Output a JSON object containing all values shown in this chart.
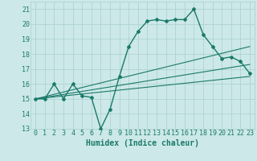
{
  "title": "",
  "xlabel": "Humidex (Indice chaleur)",
  "ylabel": "",
  "xlim": [
    -0.5,
    23.5
  ],
  "ylim": [
    13,
    21.5
  ],
  "yticks": [
    13,
    14,
    15,
    16,
    17,
    18,
    19,
    20,
    21
  ],
  "xticks": [
    0,
    1,
    2,
    3,
    4,
    5,
    6,
    7,
    8,
    9,
    10,
    11,
    12,
    13,
    14,
    15,
    16,
    17,
    18,
    19,
    20,
    21,
    22,
    23
  ],
  "bg_color": "#cce8e8",
  "grid_color": "#aacfcf",
  "line_color": "#1a7a6a",
  "lines": [
    {
      "x": [
        0,
        1,
        2,
        3,
        4,
        5,
        6,
        7,
        8,
        9,
        10,
        11,
        12,
        13,
        14,
        15,
        16,
        17,
        18,
        19,
        20,
        21,
        22,
        23
      ],
      "y": [
        15.0,
        15.0,
        16.0,
        15.0,
        16.0,
        15.2,
        15.1,
        13.0,
        14.3,
        16.5,
        18.5,
        19.5,
        20.2,
        20.3,
        20.2,
        20.3,
        20.3,
        21.0,
        19.3,
        18.5,
        17.7,
        17.8,
        17.5,
        16.7
      ],
      "marker": "D",
      "markersize": 2.0,
      "linewidth": 1.0
    },
    {
      "x": [
        0,
        23
      ],
      "y": [
        15.0,
        17.3
      ],
      "marker": null,
      "markersize": 0,
      "linewidth": 0.8
    },
    {
      "x": [
        0,
        23
      ],
      "y": [
        15.0,
        18.5
      ],
      "marker": null,
      "markersize": 0,
      "linewidth": 0.8
    },
    {
      "x": [
        0,
        23
      ],
      "y": [
        15.0,
        16.5
      ],
      "marker": null,
      "markersize": 0,
      "linewidth": 0.8
    }
  ],
  "font_size": 7,
  "tick_font_size": 6
}
